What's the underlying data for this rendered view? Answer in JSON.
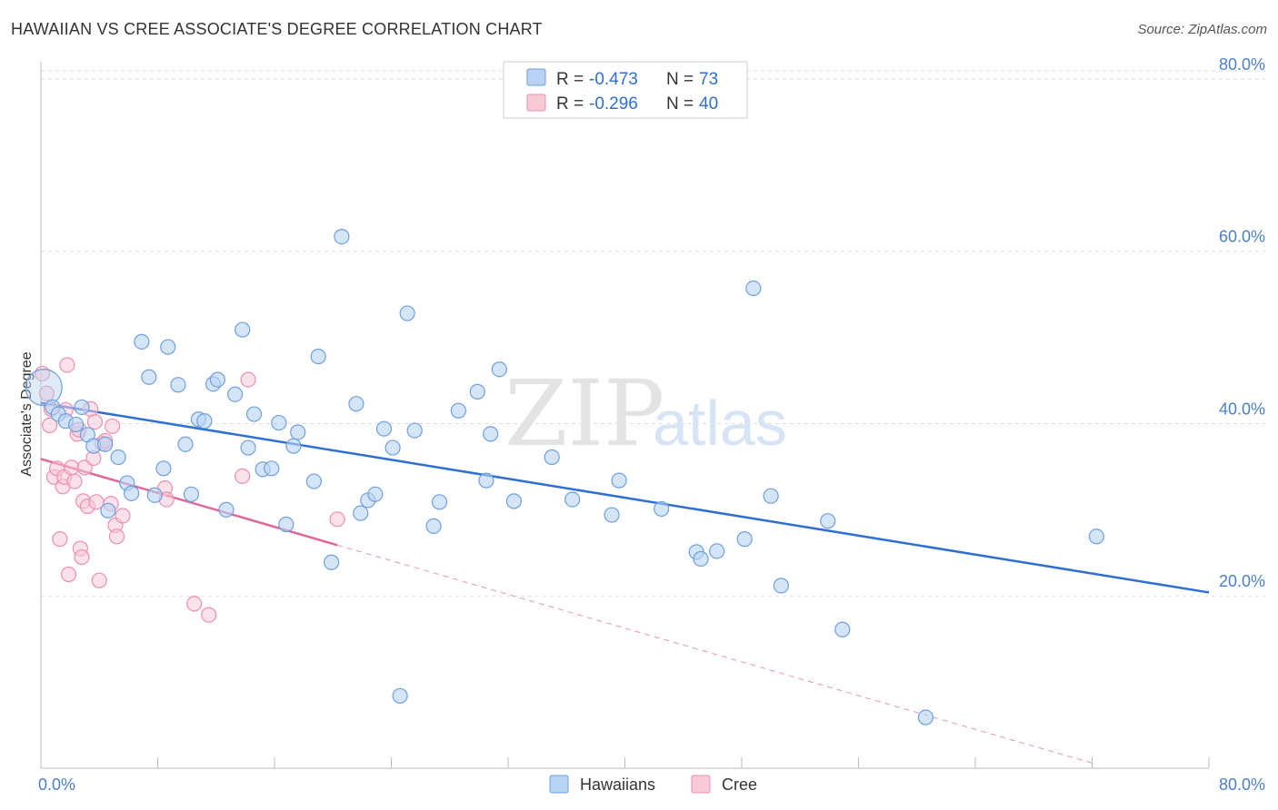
{
  "title": "HAWAIIAN VS CREE ASSOCIATE'S DEGREE CORRELATION CHART",
  "source": "Source: ZipAtlas.com",
  "watermark": {
    "zip": "ZIP",
    "atlas": "atlas"
  },
  "colors": {
    "hawaiians_fill": "#b8d3f3",
    "hawaiians_stroke": "#6f9fde",
    "hawaiians_line": "#2f6fd0",
    "cree_fill": "#f8c9d7",
    "cree_stroke": "#ec8fae",
    "cree_line": "#e0659a",
    "tick_text": "#4a7fd0",
    "grid": "#dddddd"
  },
  "legend_box": {
    "rows": [
      {
        "r_label": "R = ",
        "r_value": "-0.473",
        "n_label": "N = ",
        "n_value": "73"
      },
      {
        "r_label": "R = ",
        "r_value": "-0.296",
        "n_label": "N = ",
        "n_value": "40"
      }
    ]
  },
  "chart_data": {
    "type": "scatter",
    "title": "HAWAIIAN VS CREE ASSOCIATE'S DEGREE CORRELATION CHART",
    "xlabel": "",
    "ylabel": "Associate's Degree",
    "xlim": [
      0,
      80
    ],
    "ylim": [
      0,
      82
    ],
    "x_tick_labels": [
      "0.0%",
      "80.0%"
    ],
    "y_ticks": [
      20,
      40,
      60,
      80
    ],
    "y_tick_labels": [
      "20.0%",
      "40.0%",
      "60.0%",
      "80.0%"
    ],
    "grid": true,
    "legend_position": "bottom-center",
    "series": [
      {
        "name": "Hawaiians",
        "r": -0.473,
        "n": 73,
        "trend": {
          "x0": 0,
          "y0": 42.4,
          "x1": 80,
          "y1": 20.4
        },
        "points": [
          [
            0.2,
            44.2
          ],
          [
            0.8,
            41.9
          ],
          [
            1.2,
            41.1
          ],
          [
            1.7,
            40.3
          ],
          [
            2.4,
            39.9
          ],
          [
            2.8,
            41.9
          ],
          [
            3.2,
            38.7
          ],
          [
            3.6,
            37.4
          ],
          [
            4.4,
            37.6
          ],
          [
            4.6,
            29.9
          ],
          [
            5.3,
            36.1
          ],
          [
            5.9,
            33.1
          ],
          [
            6.2,
            31.9
          ],
          [
            6.9,
            49.5
          ],
          [
            7.4,
            45.4
          ],
          [
            7.8,
            31.7
          ],
          [
            8.4,
            34.8
          ],
          [
            8.7,
            48.9
          ],
          [
            9.4,
            44.5
          ],
          [
            9.9,
            37.6
          ],
          [
            10.3,
            31.8
          ],
          [
            10.8,
            40.5
          ],
          [
            11.2,
            40.3
          ],
          [
            11.8,
            44.6
          ],
          [
            12.1,
            45.1
          ],
          [
            12.7,
            30.0
          ],
          [
            13.3,
            43.4
          ],
          [
            13.8,
            50.9
          ],
          [
            14.2,
            37.2
          ],
          [
            14.6,
            41.1
          ],
          [
            15.2,
            34.7
          ],
          [
            15.8,
            34.8
          ],
          [
            16.3,
            40.1
          ],
          [
            16.8,
            28.3
          ],
          [
            17.3,
            37.4
          ],
          [
            17.6,
            39.0
          ],
          [
            18.7,
            33.3
          ],
          [
            19.0,
            47.8
          ],
          [
            19.9,
            23.9
          ],
          [
            20.6,
            61.7
          ],
          [
            21.6,
            42.3
          ],
          [
            21.9,
            29.6
          ],
          [
            22.4,
            31.1
          ],
          [
            22.9,
            31.8
          ],
          [
            23.5,
            39.4
          ],
          [
            24.1,
            37.2
          ],
          [
            24.6,
            8.4
          ],
          [
            25.1,
            52.8
          ],
          [
            25.6,
            39.2
          ],
          [
            26.9,
            28.1
          ],
          [
            27.3,
            30.9
          ],
          [
            28.6,
            41.5
          ],
          [
            29.9,
            43.7
          ],
          [
            30.5,
            33.4
          ],
          [
            30.8,
            38.8
          ],
          [
            31.4,
            46.3
          ],
          [
            32.4,
            31.0
          ],
          [
            35.0,
            36.1
          ],
          [
            36.4,
            31.2
          ],
          [
            39.1,
            29.4
          ],
          [
            39.6,
            33.4
          ],
          [
            42.5,
            30.1
          ],
          [
            44.9,
            25.1
          ],
          [
            45.2,
            24.3
          ],
          [
            46.3,
            25.2
          ],
          [
            48.2,
            26.6
          ],
          [
            48.8,
            55.7
          ],
          [
            50.0,
            31.6
          ],
          [
            50.7,
            21.2
          ],
          [
            53.9,
            28.7
          ],
          [
            54.9,
            16.1
          ],
          [
            60.6,
            5.9
          ],
          [
            72.3,
            26.9
          ]
        ]
      },
      {
        "name": "Cree",
        "r": -0.296,
        "n": 40,
        "trend": {
          "x0": 0,
          "y0": 35.9,
          "x1": 20.3,
          "y1": 25.9
        },
        "trend_dashed": {
          "x0": 20.3,
          "y0": 25.9,
          "x1": 72,
          "y1": 0.6
        },
        "points": [
          [
            0.1,
            45.8
          ],
          [
            0.4,
            43.5
          ],
          [
            0.6,
            39.8
          ],
          [
            0.7,
            41.7
          ],
          [
            0.9,
            33.8
          ],
          [
            1.1,
            34.8
          ],
          [
            1.3,
            26.6
          ],
          [
            1.5,
            32.7
          ],
          [
            1.6,
            33.8
          ],
          [
            1.7,
            41.6
          ],
          [
            1.8,
            46.8
          ],
          [
            1.9,
            22.5
          ],
          [
            2.1,
            34.9
          ],
          [
            2.3,
            33.3
          ],
          [
            2.5,
            38.8
          ],
          [
            2.6,
            39.3
          ],
          [
            2.7,
            25.5
          ],
          [
            2.8,
            24.5
          ],
          [
            2.9,
            31.0
          ],
          [
            3.0,
            34.9
          ],
          [
            3.2,
            30.4
          ],
          [
            3.4,
            41.7
          ],
          [
            3.6,
            36.0
          ],
          [
            3.7,
            40.2
          ],
          [
            3.8,
            30.9
          ],
          [
            4.0,
            21.8
          ],
          [
            4.2,
            37.7
          ],
          [
            4.4,
            38.0
          ],
          [
            4.8,
            30.7
          ],
          [
            4.9,
            39.7
          ],
          [
            5.1,
            28.2
          ],
          [
            5.2,
            26.9
          ],
          [
            5.6,
            29.3
          ],
          [
            8.5,
            32.5
          ],
          [
            8.6,
            31.2
          ],
          [
            10.5,
            19.1
          ],
          [
            11.5,
            17.8
          ],
          [
            13.8,
            33.9
          ],
          [
            14.2,
            45.1
          ],
          [
            20.3,
            28.9
          ]
        ]
      }
    ]
  }
}
